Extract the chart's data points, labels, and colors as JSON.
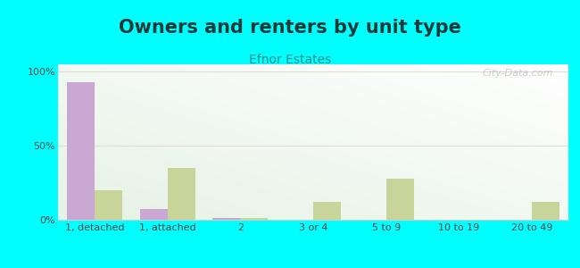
{
  "title": "Owners and renters by unit type",
  "subtitle": "Efnor Estates",
  "categories": [
    "1, detached",
    "1, attached",
    "2",
    "3 or 4",
    "5 to 9",
    "10 to 19",
    "20 to 49"
  ],
  "owner_values": [
    93,
    7,
    1,
    0,
    0,
    0,
    0
  ],
  "renter_values": [
    20,
    35,
    1,
    12,
    28,
    0,
    12
  ],
  "owner_color": "#c9a8d4",
  "renter_color": "#c8d49a",
  "background_color": "#00ffff",
  "plot_bg": "#eef5e8",
  "yticks": [
    0,
    50,
    100
  ],
  "ytick_labels": [
    "0%",
    "50%",
    "100%"
  ],
  "ylim": [
    0,
    105
  ],
  "bar_width": 0.38,
  "title_fontsize": 15,
  "subtitle_fontsize": 10,
  "tick_fontsize": 8,
  "legend_fontsize": 9,
  "title_color": "#1a3a3a",
  "subtitle_color": "#2a8a8a",
  "tick_color": "#444444"
}
